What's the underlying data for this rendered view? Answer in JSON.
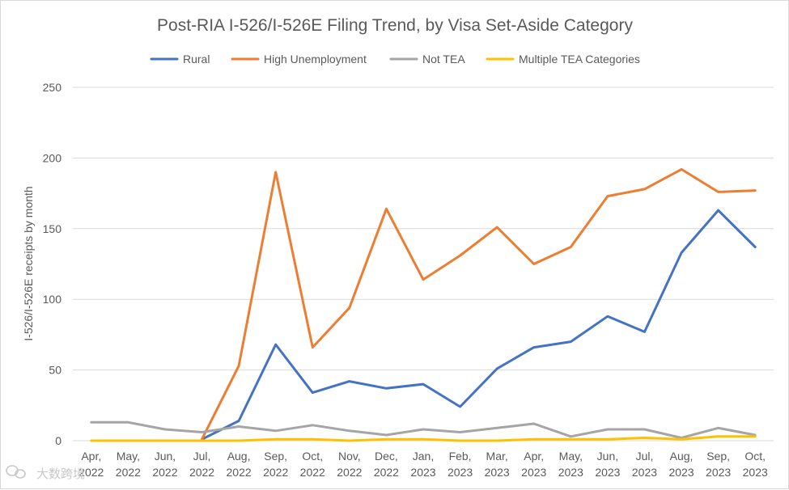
{
  "chart_data": {
    "type": "line",
    "title": "Post-RIA I-526/I-526E Filing Trend, by Visa Set-Aside Category",
    "xlabel": "",
    "ylabel": "I-526/I-526E receipts by month",
    "ylim": [
      0,
      250
    ],
    "yticks": [
      0,
      50,
      100,
      150,
      200,
      250
    ],
    "grid": true,
    "legend_position": "top",
    "categories": [
      [
        "Apr,",
        "2022"
      ],
      [
        "May,",
        "2022"
      ],
      [
        "Jun,",
        "2022"
      ],
      [
        "Jul,",
        "2022"
      ],
      [
        "Aug,",
        "2022"
      ],
      [
        "Sep,",
        "2022"
      ],
      [
        "Oct,",
        "2022"
      ],
      [
        "Nov,",
        "2022"
      ],
      [
        "Dec,",
        "2022"
      ],
      [
        "Jan,",
        "2023"
      ],
      [
        "Feb,",
        "2023"
      ],
      [
        "Mar,",
        "2023"
      ],
      [
        "Apr,",
        "2023"
      ],
      [
        "May,",
        "2023"
      ],
      [
        "Jun,",
        "2023"
      ],
      [
        "Jul,",
        "2023"
      ],
      [
        "Aug,",
        "2023"
      ],
      [
        "Sep,",
        "2023"
      ],
      [
        "Oct,",
        "2023"
      ]
    ],
    "series": [
      {
        "name": "Rural",
        "color": "#4472C4",
        "values": [
          null,
          null,
          null,
          1,
          14,
          68,
          34,
          42,
          37,
          40,
          24,
          51,
          66,
          70,
          88,
          77,
          133,
          163,
          137
        ]
      },
      {
        "name": "High Unemployment",
        "color": "#ED7D31",
        "values": [
          null,
          null,
          null,
          1,
          53,
          190,
          66,
          94,
          164,
          114,
          131,
          151,
          125,
          137,
          173,
          178,
          192,
          176,
          177
        ]
      },
      {
        "name": "Not TEA",
        "color": "#A5A5A5",
        "values": [
          13,
          13,
          8,
          6,
          10,
          7,
          11,
          7,
          4,
          8,
          6,
          9,
          12,
          3,
          8,
          8,
          2,
          9,
          4
        ]
      },
      {
        "name": "Multiple TEA Categories",
        "color": "#FFC000",
        "values": [
          0,
          0,
          0,
          0,
          0,
          1,
          1,
          0,
          1,
          1,
          0,
          0,
          1,
          1,
          1,
          2,
          1,
          3,
          3
        ]
      }
    ]
  },
  "watermark": {
    "text": "大数跨境",
    "icon": "wechat-logo-icon"
  }
}
